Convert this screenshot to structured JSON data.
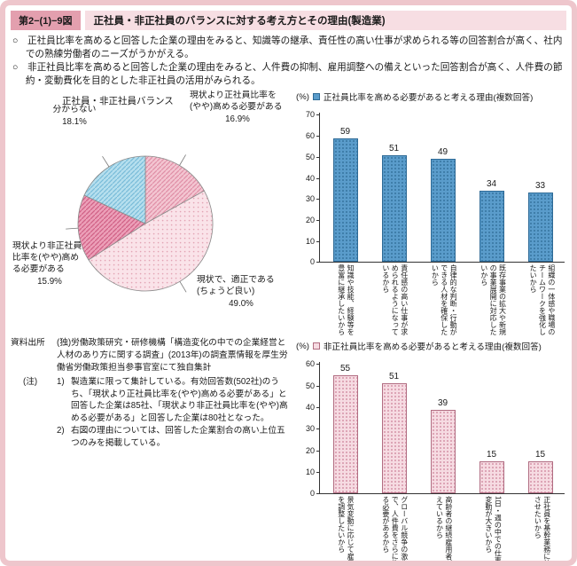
{
  "colors": {
    "frame": "#eec6cc",
    "badge": "#e39fae",
    "strip": "#f7dee3"
  },
  "header": {
    "figure_number": "第2−(1)−9図",
    "title": "正社員・非正社員のバランスに対する考え方とその理由(製造業)"
  },
  "bullets": [
    {
      "marker": "○",
      "text": "正社員比率を高めると回答した企業の理由をみると、知識等の継承、責任性の高い仕事が求められる等の回答割合が高く、社内での熟練労働者のニーズがうかがえる。"
    },
    {
      "marker": "○",
      "text": "非正社員比率を高めると回答した企業の理由をみると、人件費の抑制、雇用調整への備えといった回答割合が高く、人件費の節約・変動費化を目的とした非正社員の活用がみられる。"
    }
  ],
  "chart_data": [
    {
      "type": "pie",
      "title": "正社員・非正社員バランス",
      "slices": [
        {
          "label": "現状より正社員比率を(やや)高める必要がある",
          "pct": "16.9%",
          "value": 16.9,
          "fill": "#f3c5d1",
          "pattern": "hatch",
          "pattern_color": "#e08ea6"
        },
        {
          "label": "現状で、適正である(ちょうど良い)",
          "pct": "49.0%",
          "value": 49.0,
          "fill": "#fae3e9",
          "pattern": "dots",
          "pattern_color": "#e2a3b4"
        },
        {
          "label": "現状より非正社員比率を(やや)高める必要がある",
          "pct": "15.9%",
          "value": 15.9,
          "fill": "#ec9fb8",
          "pattern": "hatch",
          "pattern_color": "#d06085"
        },
        {
          "label": "分からない",
          "pct": "18.1%",
          "value": 18.1,
          "fill": "#b6dfee",
          "pattern": "hatch",
          "pattern_color": "#79bcd9"
        }
      ]
    },
    {
      "type": "bar",
      "title": "正社員比率を高める必要があると考える理由(複数回答)",
      "unit": "(%)",
      "ylim": [
        0,
        70
      ],
      "yticks": [
        0,
        10,
        20,
        30,
        40,
        50,
        60,
        70
      ],
      "categories": [
        "知識や技能、経験等を豊富に継承したいから",
        "責任感の高い仕事が求められるようになっているから",
        "自律的な判断・行動ができる人材を確保したいから",
        "既存事業の拡大や新規の事業展開に対応したいから",
        "組織の一体感や職場のチームワークを強化したいから"
      ],
      "values": [
        59,
        51,
        49,
        34,
        33
      ],
      "bar": {
        "fill": "#5a9ccb",
        "dot": "#36749f",
        "border": "#2e6a96"
      }
    },
    {
      "type": "bar",
      "title": "非正社員比率を高める必要があると考える理由(複数回答)",
      "unit": "(%)",
      "ylim": [
        0,
        60
      ],
      "yticks": [
        0,
        10,
        20,
        30,
        40,
        50,
        60
      ],
      "categories": [
        "景気変動に応じて雇用量を調整したいから",
        "グローバル競争の激化等で、人件費をさらに抑える必要があるから",
        "高齢者の継続雇用者が増えているから",
        "1日・週の中での仕事量の変動が大きいから",
        "正社員を基幹業務に特化させたいから"
      ],
      "values": [
        55,
        51,
        39,
        15,
        15
      ],
      "bar": {
        "fill": "#f6dbe2",
        "dot": "#d593a8",
        "border": "#b16d82"
      }
    }
  ],
  "notes": {
    "source_label": "資料出所",
    "source_text": "(独)労働政策研究・研修機構「構造変化の中での企業経営と人材のあり方に関する調査」(2013年)の調査票情報を厚生労働省労働政策担当参事官室にて独自集計",
    "note_label": "(注)",
    "items": [
      {
        "num": "1)",
        "text": "製造業に限って集計している。有効回答数(502社)のうち、「現状より正社員比率を(やや)高める必要がある」と回答した企業は85社、「現状より非正社員比率を(やや)高める必要がある」と回答した企業は80社となった。"
      },
      {
        "num": "2)",
        "text": "右図の理由については、回答した企業割合の高い上位五つのみを掲載している。"
      }
    ]
  }
}
